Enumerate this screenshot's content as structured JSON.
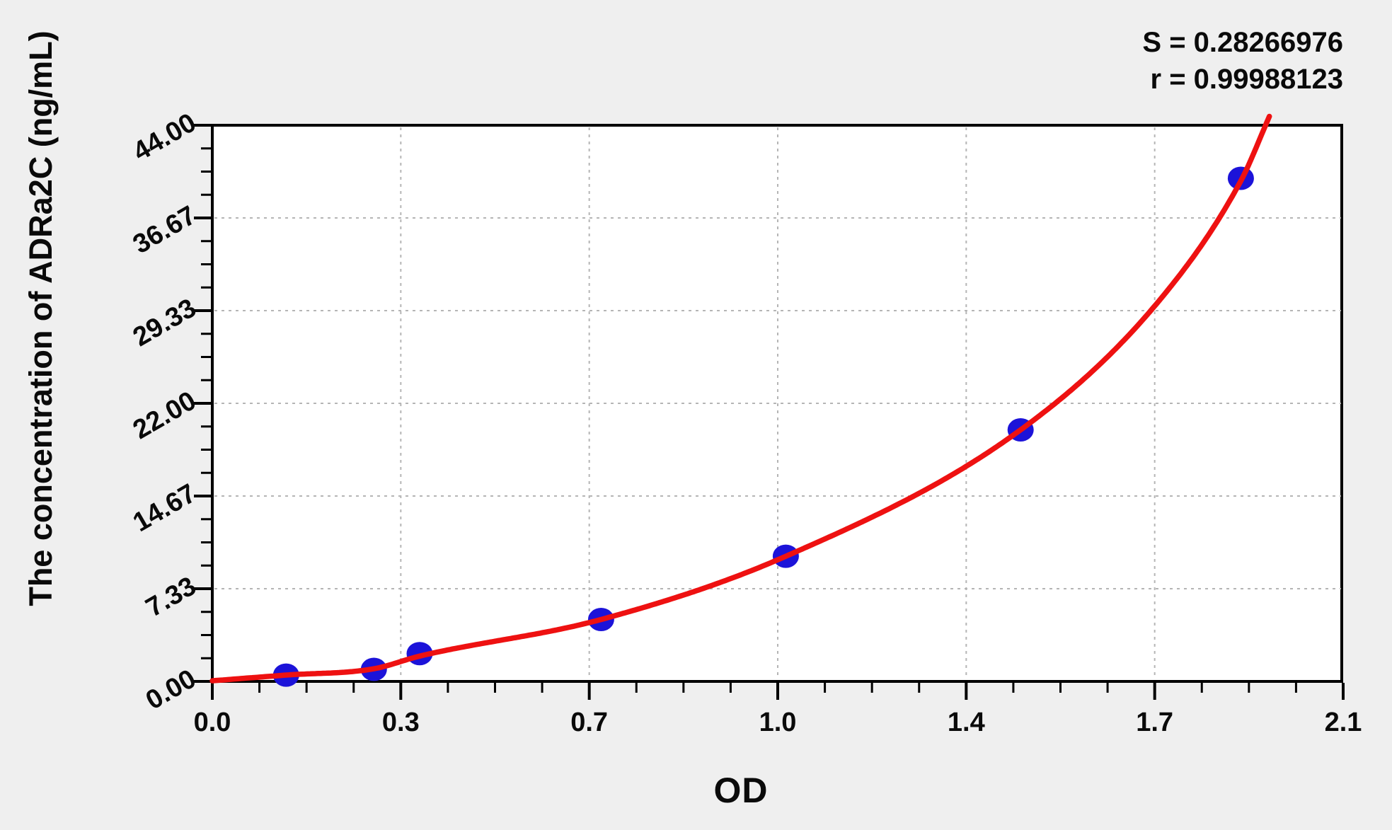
{
  "chart_data": {
    "type": "scatter",
    "title": "",
    "xlabel": "OD",
    "ylabel": "The concentration of ADRa2C (ng/mL)",
    "xlim": [
      0,
      2.1
    ],
    "ylim": [
      0,
      44
    ],
    "grid": "dashed gridlines at major ticks, plot fully framed by black border",
    "legend_position": "none",
    "x_ticks": {
      "values": [
        0,
        0.35,
        0.7,
        1.05,
        1.4,
        1.75,
        2.1
      ],
      "labels": [
        "0.0",
        "0.3",
        "0.7",
        "1.0",
        "1.4",
        "1.7",
        "2.1"
      ]
    },
    "y_ticks": {
      "values": [
        0,
        7.3333,
        14.6667,
        22,
        29.3333,
        36.6667,
        44
      ],
      "labels": [
        "0.00",
        "7.33",
        "14.67",
        "22.00",
        "29.33",
        "36.67",
        "44.00"
      ]
    },
    "minor_tick_divisions": 4,
    "points": {
      "series_name": "standard-points",
      "od": [
        0.137,
        0.3,
        0.385,
        0.722,
        1.065,
        1.501,
        1.91
      ],
      "concentration": [
        0.5,
        0.95,
        2.2,
        4.9,
        9.9,
        19.9,
        39.8
      ]
    },
    "fit_curve": {
      "series_name": "fitted-standard-curve",
      "od": [
        0,
        0.137,
        0.3,
        0.385,
        0.722,
        1.065,
        1.501,
        1.75,
        1.91,
        1.963
      ],
      "concentration": [
        0.05,
        0.5,
        1.0,
        2.0,
        4.9,
        9.9,
        19.9,
        29.7,
        39.6,
        44.7
      ]
    },
    "annotations": {
      "s_line": "S = 0.28266976",
      "r_line": "r = 0.99988123",
      "s_value": "0.28266976",
      "r_value": "0.99988123"
    },
    "colors": {
      "point": "#1c13d9",
      "curve": "#ee1111",
      "grid": "#b5b5b5",
      "axis": "#000000",
      "plot_bg": "#ffffff",
      "page_bg": "#efefef",
      "text": "#0a0a0a"
    }
  }
}
